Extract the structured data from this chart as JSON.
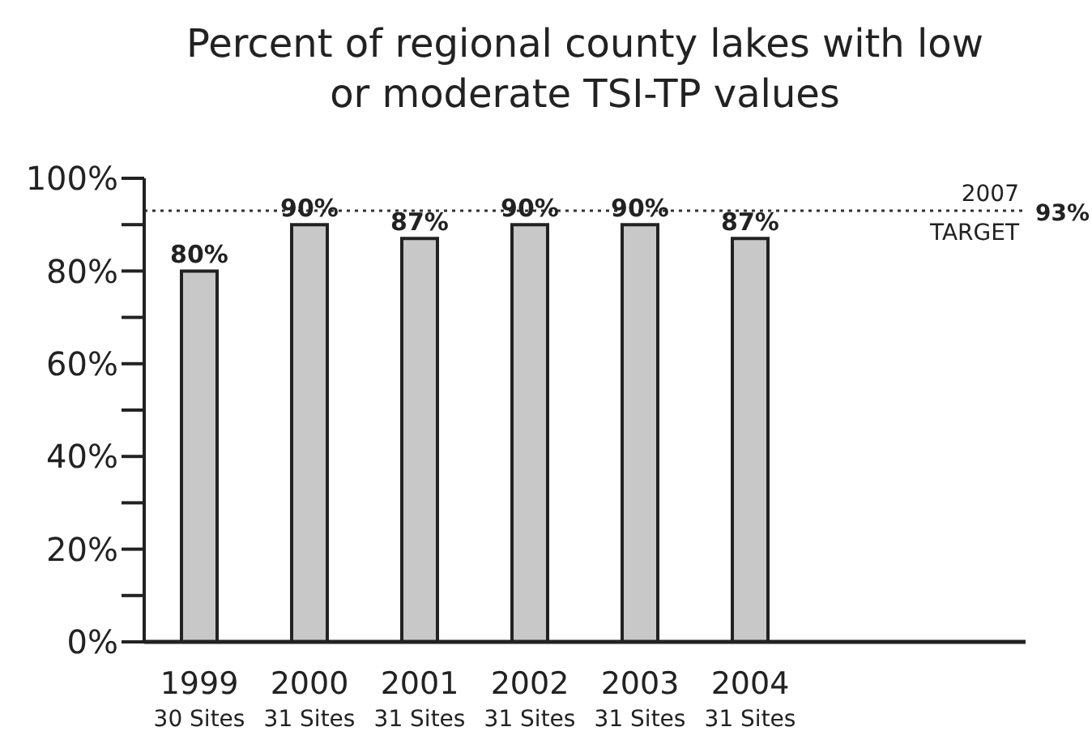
{
  "chart_data": {
    "type": "bar",
    "title": "Percent of regional county lakes with low\nor moderate TSI-TP values",
    "categories": [
      "1999\n30 Sites",
      "2000\n31 Sites",
      "2001\n31 Sites",
      "2002\n31 Sites",
      "2003\n31 Sites",
      "2004\n31 Sites",
      null,
      null
    ],
    "values": [
      80,
      90,
      87,
      90,
      90,
      87,
      null,
      null
    ],
    "value_labels": [
      "80%",
      "90%",
      "87%",
      "90%",
      "90%",
      "87%",
      null,
      null
    ],
    "color": "#c8c8c8",
    "ylim": [
      0,
      100
    ],
    "yticks": [
      {
        "value": 0,
        "label": "0%"
      },
      {
        "value": 10,
        "label": null
      },
      {
        "value": 20,
        "label": "20%"
      },
      {
        "value": 30,
        "label": null
      },
      {
        "value": 40,
        "label": "40%"
      },
      {
        "value": 50,
        "label": null
      },
      {
        "value": 60,
        "label": "60%"
      },
      {
        "value": 70,
        "label": null
      },
      {
        "value": 80,
        "label": "80%"
      },
      {
        "value": 90,
        "label": null
      },
      {
        "value": 100,
        "label": "100%"
      }
    ],
    "ref_lines": [
      {
        "axis": "y",
        "value": 93,
        "label": "2007\nTARGET",
        "color": "#333333",
        "line_style": "dotted"
      }
    ],
    "annotations": [
      "93%"
    ],
    "grid": false,
    "legend": false
  }
}
